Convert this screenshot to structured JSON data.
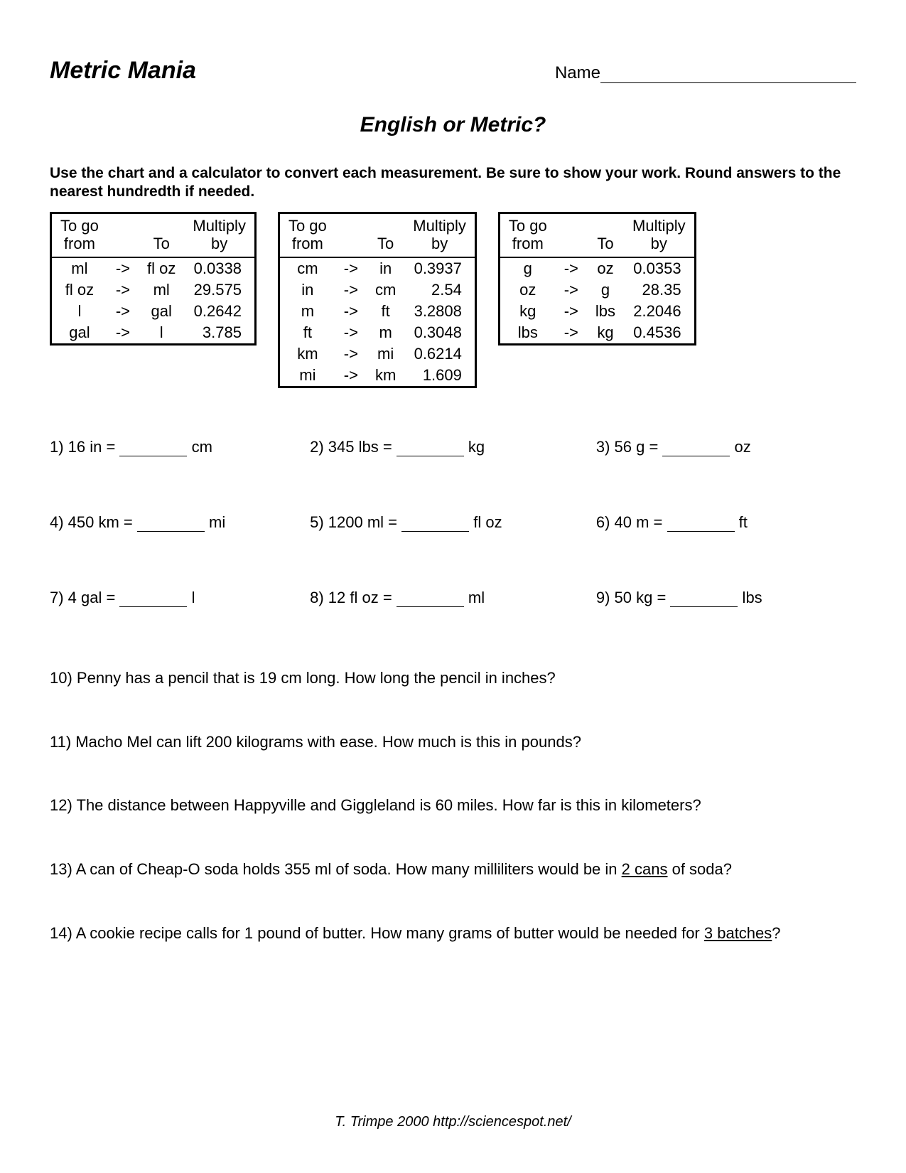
{
  "header": {
    "title": "Metric Mania",
    "name_label": "Name"
  },
  "subtitle": "English or Metric?",
  "instructions": "Use the chart and a calculator to convert each measurement.  Be sure to show your work.  Round answers to the nearest hundredth if needed.",
  "table_headers": {
    "from": "To go\nfrom",
    "to": "To",
    "mult": "Multiply\nby"
  },
  "tables": [
    {
      "rows": [
        [
          "ml",
          "->",
          "fl oz",
          "0.0338"
        ],
        [
          "fl oz",
          "->",
          "ml",
          "29.575"
        ],
        [
          "l",
          "->",
          "gal",
          "0.2642"
        ],
        [
          "gal",
          "->",
          "l",
          "3.785"
        ]
      ]
    },
    {
      "rows": [
        [
          "cm",
          "->",
          "in",
          "0.3937"
        ],
        [
          "in",
          "->",
          "cm",
          "2.54"
        ],
        [
          "m",
          "->",
          "ft",
          "3.2808"
        ],
        [
          "ft",
          "->",
          "m",
          "0.3048"
        ],
        [
          "km",
          "->",
          "mi",
          "0.6214"
        ],
        [
          "mi",
          "->",
          "km",
          "1.609"
        ]
      ]
    },
    {
      "rows": [
        [
          "g",
          "->",
          "oz",
          "0.0353"
        ],
        [
          "oz",
          "->",
          "g",
          "28.35"
        ],
        [
          "kg",
          "->",
          "lbs",
          "2.2046"
        ],
        [
          "lbs",
          "->",
          "kg",
          "0.4536"
        ]
      ]
    }
  ],
  "problems": [
    {
      "n": "1)",
      "lhs": "16 in",
      "rhs": "cm"
    },
    {
      "n": "2)",
      "lhs": "345 lbs",
      "rhs": "kg"
    },
    {
      "n": "3)",
      "lhs": "56 g",
      "rhs": "oz"
    },
    {
      "n": "4)",
      "lhs": "450 km",
      "rhs": "mi"
    },
    {
      "n": "5)",
      "lhs": "1200 ml",
      "rhs": "fl oz"
    },
    {
      "n": "6)",
      "lhs": "40 m",
      "rhs": "ft"
    },
    {
      "n": "7)",
      "lhs": "4 gal",
      "rhs": "l"
    },
    {
      "n": "8)",
      "lhs": "12 fl oz",
      "rhs": "ml"
    },
    {
      "n": "9)",
      "lhs": "50 kg",
      "rhs": "lbs"
    }
  ],
  "word_problems": {
    "p10": "10)  Penny has a pencil that is 19 cm long.  How long the pencil in inches?",
    "p11": "11)  Macho Mel can lift 200 kilograms with ease.  How much is this in pounds?",
    "p12": "12)  The distance between Happyville and Giggleland is 60 miles.  How far is this in kilometers?",
    "p13_a": "13)  A can of Cheap-O soda holds 355 ml of soda.  How many milliliters would be in ",
    "p13_u": "2 cans",
    "p13_b": " of soda?",
    "p14_a": "14)  A cookie recipe calls for 1 pound of butter.  How many grams of butter would be needed for ",
    "p14_u": "3 batches",
    "p14_b": "?"
  },
  "footer": "T. Trimpe 2000  http://sciencespot.net/",
  "style": {
    "page_bg": "#ffffff",
    "text_color": "#000000",
    "border_color": "#000000",
    "font_family": "Arial",
    "title_fontsize": 34,
    "subtitle_fontsize": 30,
    "body_fontsize": 22,
    "table_border_width": 3
  }
}
